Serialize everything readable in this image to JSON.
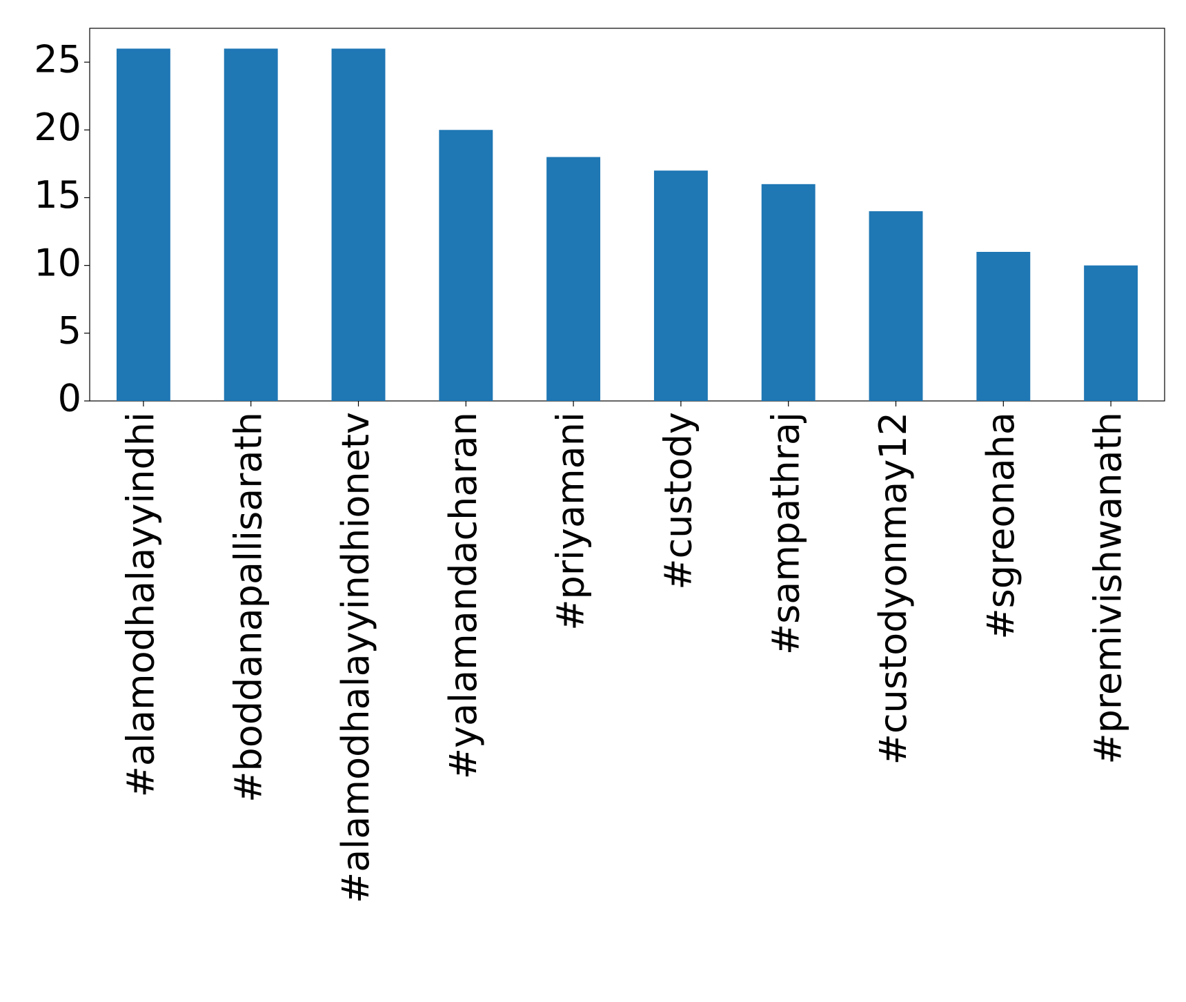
{
  "chart_data": {
    "type": "bar",
    "categories": [
      "#alamodhalayyindhi",
      "#boddanapallisarath",
      "#alamodhalayyindhionetv",
      "#yalamandacharan",
      "#priyamani",
      "#custody",
      "#sampathraj",
      "#custodyonmay12",
      "#sgreonaha",
      "#premivishwanath"
    ],
    "values": [
      26,
      26,
      26,
      20,
      18,
      17,
      16,
      14,
      11,
      10
    ],
    "color": "#1f77b4",
    "ylim": [
      0,
      27.5
    ],
    "yticks": [
      0,
      5,
      10,
      15,
      20,
      25
    ],
    "grid": false
  }
}
